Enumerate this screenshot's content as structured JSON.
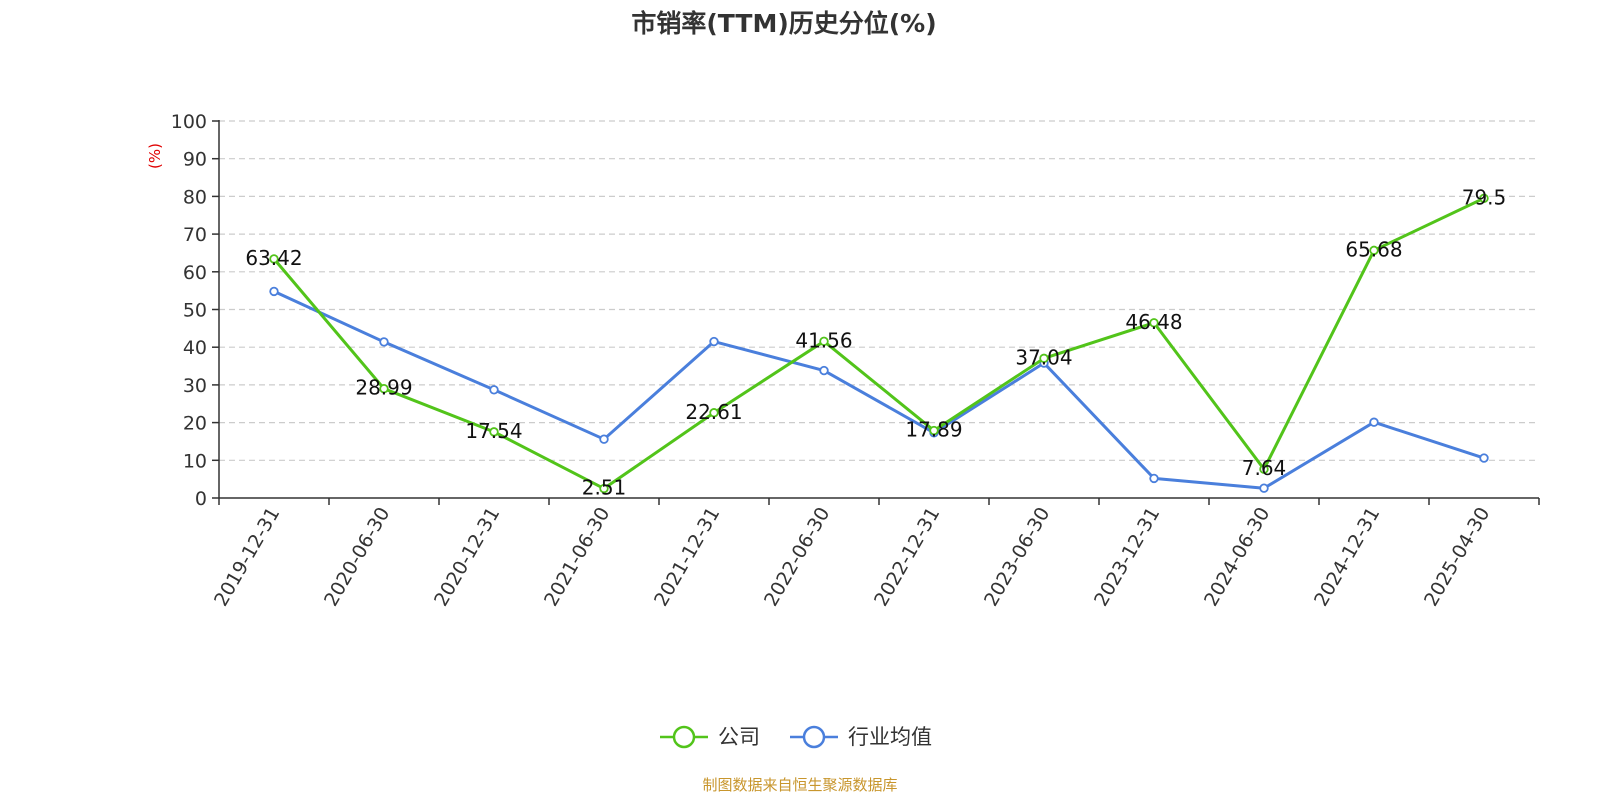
{
  "chart_data": {
    "type": "line",
    "title": "市销率(TTM)历史分位(%)",
    "ylabel": "(%)",
    "xlabel": "",
    "categories": [
      "2019-12-31",
      "2020-06-30",
      "2020-12-31",
      "2021-06-30",
      "2021-12-31",
      "2022-06-30",
      "2022-12-31",
      "2023-06-30",
      "2023-12-31",
      "2024-06-30",
      "2024-12-31",
      "2025-04-30"
    ],
    "ylim": [
      0,
      100
    ],
    "yticks": [
      "0",
      "10",
      "20",
      "30",
      "40",
      "50",
      "60",
      "70",
      "80",
      "90",
      "100"
    ],
    "grid": true,
    "legend_position": "bottom-center",
    "series": [
      {
        "name": "公司",
        "color": "#52c41a",
        "values": [
          63.42,
          28.99,
          17.54,
          2.51,
          22.61,
          41.56,
          17.89,
          37.04,
          46.48,
          7.64,
          65.68,
          79.5
        ],
        "labels": [
          "63.42",
          "28.99",
          "17.54",
          "2.51",
          "22.61",
          "41.56",
          "17.89",
          "37.04",
          "46.48",
          "7.64",
          "65.68",
          "79.5"
        ]
      },
      {
        "name": "行业均值",
        "color": "#4a7fdc",
        "values": [
          54.8,
          41.4,
          28.7,
          15.6,
          41.5,
          33.8,
          17.3,
          35.8,
          5.2,
          2.6,
          20.1,
          10.6
        ]
      }
    ]
  },
  "source": "制图数据来自恒生聚源数据库",
  "unit_color": "#e00000",
  "source_color": "#c8962d"
}
